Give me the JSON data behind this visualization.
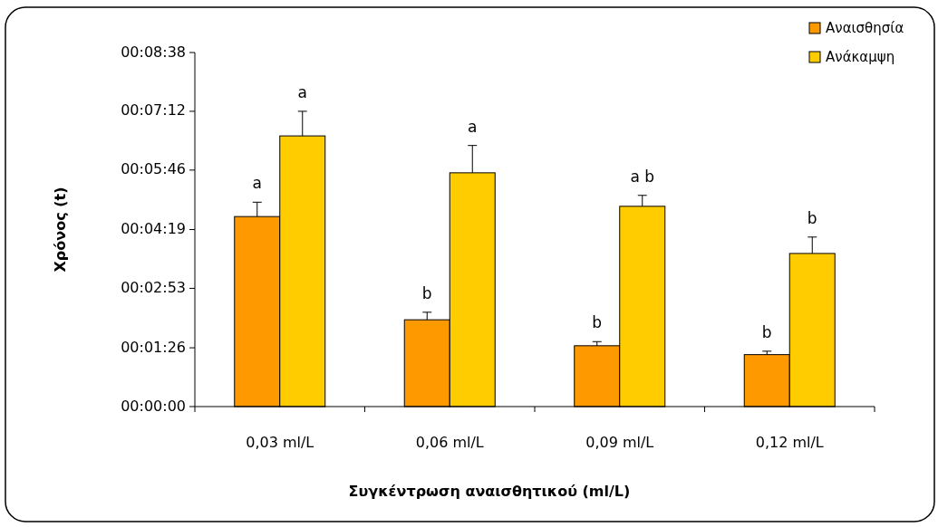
{
  "chart_data": {
    "type": "bar",
    "xlabel": "Συγκέντρωση αναισθητικού (ml/L)",
    "ylabel": "Χρόνος (t)",
    "categories": [
      "0,03 ml/L",
      "0,06 ml/L",
      "0,09 ml/L",
      "0,12 ml/L"
    ],
    "series": [
      {
        "name": "Αναισθησία",
        "color": "#ff9900",
        "values": [
          278,
          127,
          89,
          76
        ],
        "errors": [
          [
            278,
            299
          ],
          [
            127,
            138
          ],
          [
            89,
            95
          ],
          [
            76,
            81
          ]
        ],
        "value_labels": [
          "a",
          "b",
          "b",
          "b"
        ]
      },
      {
        "name": "Ανάκαμψη",
        "color": "#ffcc00",
        "values": [
          396,
          342,
          293,
          224
        ],
        "errors": [
          [
            396,
            432
          ],
          [
            342,
            382
          ],
          [
            293,
            309
          ],
          [
            224,
            248
          ]
        ],
        "value_labels": [
          "a",
          "a",
          "a b",
          "b"
        ]
      }
    ],
    "ylim": [
      0,
      518
    ],
    "yticks": [
      {
        "value": 0,
        "label": "00:00:00"
      },
      {
        "value": 86,
        "label": "00:01:26"
      },
      {
        "value": 173,
        "label": "00:02:53"
      },
      {
        "value": 259,
        "label": "00:04:19"
      },
      {
        "value": 346,
        "label": "00:05:46"
      },
      {
        "value": 432,
        "label": "00:07:12"
      },
      {
        "value": 518,
        "label": "00:08:38"
      }
    ],
    "grid": false,
    "legend": "top right"
  }
}
